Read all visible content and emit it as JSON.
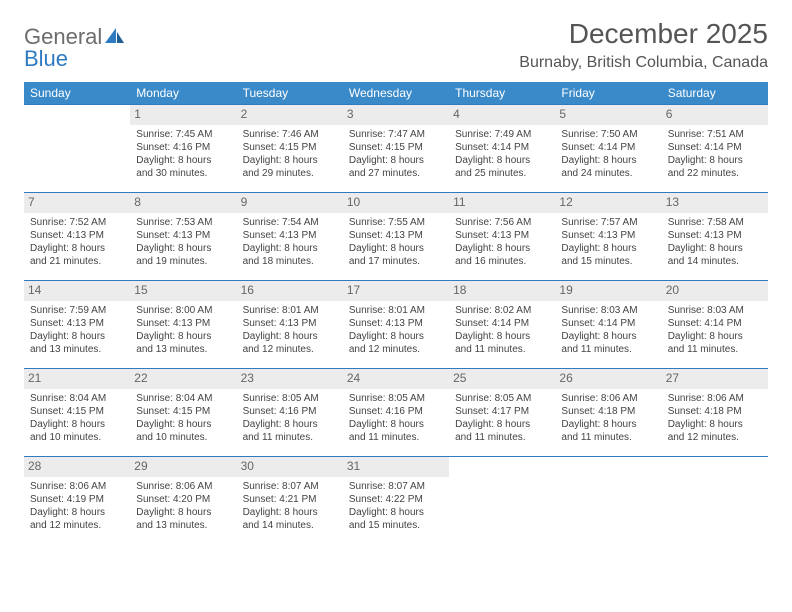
{
  "logo": {
    "part1": "General",
    "part2": "Blue"
  },
  "title": "December 2025",
  "location": "Burnaby, British Columbia, Canada",
  "colors": {
    "header_bg": "#3a8ac9",
    "header_text": "#ffffff",
    "daynum_bg": "#ececec",
    "row_border": "#2f7bc2",
    "text": "#444444",
    "logo_gray": "#6d6d6d",
    "logo_blue": "#2f7bc2"
  },
  "day_headers": [
    "Sunday",
    "Monday",
    "Tuesday",
    "Wednesday",
    "Thursday",
    "Friday",
    "Saturday"
  ],
  "weeks": [
    [
      {
        "n": "",
        "sr": "",
        "ss": "",
        "d1": "",
        "d2": ""
      },
      {
        "n": "1",
        "sr": "Sunrise: 7:45 AM",
        "ss": "Sunset: 4:16 PM",
        "d1": "Daylight: 8 hours",
        "d2": "and 30 minutes."
      },
      {
        "n": "2",
        "sr": "Sunrise: 7:46 AM",
        "ss": "Sunset: 4:15 PM",
        "d1": "Daylight: 8 hours",
        "d2": "and 29 minutes."
      },
      {
        "n": "3",
        "sr": "Sunrise: 7:47 AM",
        "ss": "Sunset: 4:15 PM",
        "d1": "Daylight: 8 hours",
        "d2": "and 27 minutes."
      },
      {
        "n": "4",
        "sr": "Sunrise: 7:49 AM",
        "ss": "Sunset: 4:14 PM",
        "d1": "Daylight: 8 hours",
        "d2": "and 25 minutes."
      },
      {
        "n": "5",
        "sr": "Sunrise: 7:50 AM",
        "ss": "Sunset: 4:14 PM",
        "d1": "Daylight: 8 hours",
        "d2": "and 24 minutes."
      },
      {
        "n": "6",
        "sr": "Sunrise: 7:51 AM",
        "ss": "Sunset: 4:14 PM",
        "d1": "Daylight: 8 hours",
        "d2": "and 22 minutes."
      }
    ],
    [
      {
        "n": "7",
        "sr": "Sunrise: 7:52 AM",
        "ss": "Sunset: 4:13 PM",
        "d1": "Daylight: 8 hours",
        "d2": "and 21 minutes."
      },
      {
        "n": "8",
        "sr": "Sunrise: 7:53 AM",
        "ss": "Sunset: 4:13 PM",
        "d1": "Daylight: 8 hours",
        "d2": "and 19 minutes."
      },
      {
        "n": "9",
        "sr": "Sunrise: 7:54 AM",
        "ss": "Sunset: 4:13 PM",
        "d1": "Daylight: 8 hours",
        "d2": "and 18 minutes."
      },
      {
        "n": "10",
        "sr": "Sunrise: 7:55 AM",
        "ss": "Sunset: 4:13 PM",
        "d1": "Daylight: 8 hours",
        "d2": "and 17 minutes."
      },
      {
        "n": "11",
        "sr": "Sunrise: 7:56 AM",
        "ss": "Sunset: 4:13 PM",
        "d1": "Daylight: 8 hours",
        "d2": "and 16 minutes."
      },
      {
        "n": "12",
        "sr": "Sunrise: 7:57 AM",
        "ss": "Sunset: 4:13 PM",
        "d1": "Daylight: 8 hours",
        "d2": "and 15 minutes."
      },
      {
        "n": "13",
        "sr": "Sunrise: 7:58 AM",
        "ss": "Sunset: 4:13 PM",
        "d1": "Daylight: 8 hours",
        "d2": "and 14 minutes."
      }
    ],
    [
      {
        "n": "14",
        "sr": "Sunrise: 7:59 AM",
        "ss": "Sunset: 4:13 PM",
        "d1": "Daylight: 8 hours",
        "d2": "and 13 minutes."
      },
      {
        "n": "15",
        "sr": "Sunrise: 8:00 AM",
        "ss": "Sunset: 4:13 PM",
        "d1": "Daylight: 8 hours",
        "d2": "and 13 minutes."
      },
      {
        "n": "16",
        "sr": "Sunrise: 8:01 AM",
        "ss": "Sunset: 4:13 PM",
        "d1": "Daylight: 8 hours",
        "d2": "and 12 minutes."
      },
      {
        "n": "17",
        "sr": "Sunrise: 8:01 AM",
        "ss": "Sunset: 4:13 PM",
        "d1": "Daylight: 8 hours",
        "d2": "and 12 minutes."
      },
      {
        "n": "18",
        "sr": "Sunrise: 8:02 AM",
        "ss": "Sunset: 4:14 PM",
        "d1": "Daylight: 8 hours",
        "d2": "and 11 minutes."
      },
      {
        "n": "19",
        "sr": "Sunrise: 8:03 AM",
        "ss": "Sunset: 4:14 PM",
        "d1": "Daylight: 8 hours",
        "d2": "and 11 minutes."
      },
      {
        "n": "20",
        "sr": "Sunrise: 8:03 AM",
        "ss": "Sunset: 4:14 PM",
        "d1": "Daylight: 8 hours",
        "d2": "and 11 minutes."
      }
    ],
    [
      {
        "n": "21",
        "sr": "Sunrise: 8:04 AM",
        "ss": "Sunset: 4:15 PM",
        "d1": "Daylight: 8 hours",
        "d2": "and 10 minutes."
      },
      {
        "n": "22",
        "sr": "Sunrise: 8:04 AM",
        "ss": "Sunset: 4:15 PM",
        "d1": "Daylight: 8 hours",
        "d2": "and 10 minutes."
      },
      {
        "n": "23",
        "sr": "Sunrise: 8:05 AM",
        "ss": "Sunset: 4:16 PM",
        "d1": "Daylight: 8 hours",
        "d2": "and 11 minutes."
      },
      {
        "n": "24",
        "sr": "Sunrise: 8:05 AM",
        "ss": "Sunset: 4:16 PM",
        "d1": "Daylight: 8 hours",
        "d2": "and 11 minutes."
      },
      {
        "n": "25",
        "sr": "Sunrise: 8:05 AM",
        "ss": "Sunset: 4:17 PM",
        "d1": "Daylight: 8 hours",
        "d2": "and 11 minutes."
      },
      {
        "n": "26",
        "sr": "Sunrise: 8:06 AM",
        "ss": "Sunset: 4:18 PM",
        "d1": "Daylight: 8 hours",
        "d2": "and 11 minutes."
      },
      {
        "n": "27",
        "sr": "Sunrise: 8:06 AM",
        "ss": "Sunset: 4:18 PM",
        "d1": "Daylight: 8 hours",
        "d2": "and 12 minutes."
      }
    ],
    [
      {
        "n": "28",
        "sr": "Sunrise: 8:06 AM",
        "ss": "Sunset: 4:19 PM",
        "d1": "Daylight: 8 hours",
        "d2": "and 12 minutes."
      },
      {
        "n": "29",
        "sr": "Sunrise: 8:06 AM",
        "ss": "Sunset: 4:20 PM",
        "d1": "Daylight: 8 hours",
        "d2": "and 13 minutes."
      },
      {
        "n": "30",
        "sr": "Sunrise: 8:07 AM",
        "ss": "Sunset: 4:21 PM",
        "d1": "Daylight: 8 hours",
        "d2": "and 14 minutes."
      },
      {
        "n": "31",
        "sr": "Sunrise: 8:07 AM",
        "ss": "Sunset: 4:22 PM",
        "d1": "Daylight: 8 hours",
        "d2": "and 15 minutes."
      },
      {
        "n": "",
        "sr": "",
        "ss": "",
        "d1": "",
        "d2": ""
      },
      {
        "n": "",
        "sr": "",
        "ss": "",
        "d1": "",
        "d2": ""
      },
      {
        "n": "",
        "sr": "",
        "ss": "",
        "d1": "",
        "d2": ""
      }
    ]
  ]
}
